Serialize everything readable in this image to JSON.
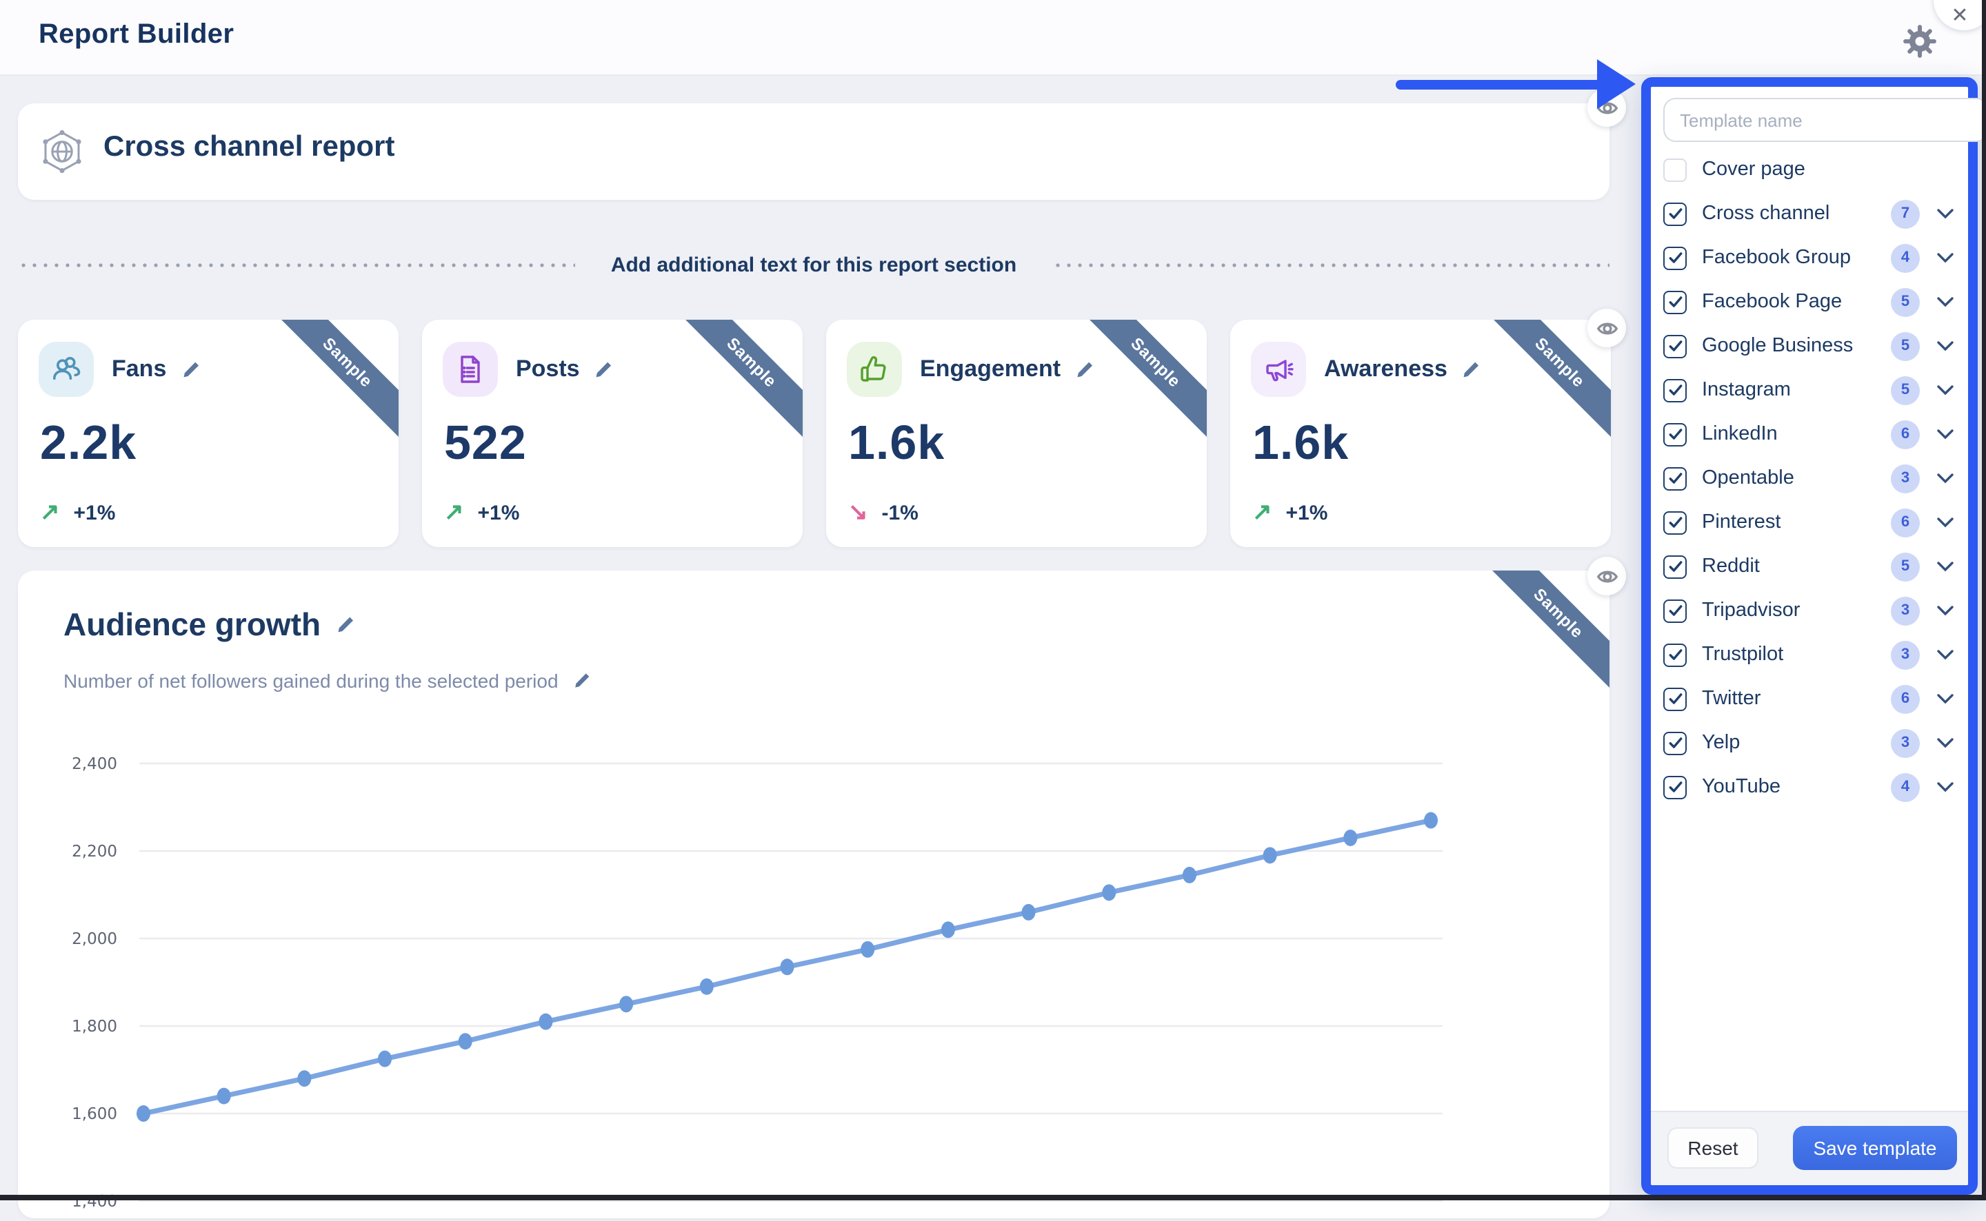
{
  "topbar": {
    "title": "Report Builder"
  },
  "report": {
    "title": "Cross channel report"
  },
  "section_divider": {
    "text": "Add additional text for this report section"
  },
  "ribbon_label": "Sample",
  "stat_cards": [
    {
      "id": "fans",
      "label": "Fans",
      "value": "2.2k",
      "delta": "+1%",
      "direction": "up",
      "icon": "users-icon",
      "icon_color": "#4f93b8",
      "icon_bg": "#e3eff6"
    },
    {
      "id": "posts",
      "label": "Posts",
      "value": "522",
      "delta": "+1%",
      "direction": "up",
      "icon": "document-icon",
      "icon_color": "#8e44cc",
      "icon_bg": "#f2e8fb"
    },
    {
      "id": "engagement",
      "label": "Engagement",
      "value": "1.6k",
      "delta": "-1%",
      "direction": "down",
      "icon": "thumbs-up-icon",
      "icon_color": "#55a02e",
      "icon_bg": "#eaf5e3"
    },
    {
      "id": "awareness",
      "label": "Awareness",
      "value": "1.6k",
      "delta": "+1%",
      "direction": "up",
      "icon": "megaphone-icon",
      "icon_color": "#8b46d4",
      "icon_bg": "#f4edfb"
    }
  ],
  "chart_card": {
    "title": "Audience growth",
    "subtitle": "Number of net followers gained during the selected period"
  },
  "chart_data": {
    "type": "line",
    "title": "Audience growth",
    "subtitle": "Number of net followers gained during the selected period",
    "series": [
      {
        "name": "Net followers",
        "values": [
          1600,
          1640,
          1680,
          1725,
          1765,
          1810,
          1850,
          1890,
          1935,
          1975,
          2020,
          2060,
          2105,
          2145,
          2190,
          2230,
          2270
        ]
      }
    ],
    "yticks": [
      2400,
      2200,
      2000,
      1800,
      1600,
      1400
    ],
    "ylim": [
      1400,
      2400
    ],
    "x_labels_visible": false,
    "grid": true,
    "legend": false,
    "line_color": "#7ca5e2",
    "marker_color": "#6c9bdc"
  },
  "template_panel": {
    "name_input": {
      "value": "",
      "placeholder": "Template name"
    },
    "items": [
      {
        "label": "Cover page",
        "checked": false,
        "count": null
      },
      {
        "label": "Cross channel",
        "checked": true,
        "count": 7
      },
      {
        "label": "Facebook Group",
        "checked": true,
        "count": 4
      },
      {
        "label": "Facebook Page",
        "checked": true,
        "count": 5
      },
      {
        "label": "Google Business",
        "checked": true,
        "count": 5
      },
      {
        "label": "Instagram",
        "checked": true,
        "count": 5
      },
      {
        "label": "LinkedIn",
        "checked": true,
        "count": 6
      },
      {
        "label": "Opentable",
        "checked": true,
        "count": 3
      },
      {
        "label": "Pinterest",
        "checked": true,
        "count": 6
      },
      {
        "label": "Reddit",
        "checked": true,
        "count": 5
      },
      {
        "label": "Tripadvisor",
        "checked": true,
        "count": 3
      },
      {
        "label": "Trustpilot",
        "checked": true,
        "count": 3
      },
      {
        "label": "Twitter",
        "checked": true,
        "count": 6
      },
      {
        "label": "Yelp",
        "checked": true,
        "count": 3
      },
      {
        "label": "YouTube",
        "checked": true,
        "count": 4
      }
    ],
    "reset_label": "Reset",
    "save_label": "Save template"
  },
  "colors": {
    "accent_blue": "#2e58f2",
    "ribbon": "#5a769d",
    "up_green": "#3fae73",
    "down_pink": "#e0659a",
    "badge_bg": "#cdd8f8",
    "badge_text": "#3f5fd9",
    "navy_text": "#1d3a63"
  }
}
